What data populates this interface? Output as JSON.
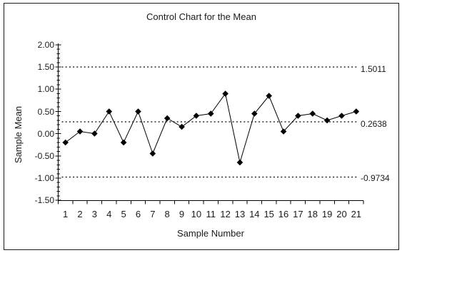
{
  "chart": {
    "title": "Control Chart for the Mean",
    "x_axis_label": "Sample Number",
    "y_axis_label": "Sample Mean",
    "line_labels": {
      "ucl": "1.5011",
      "center": "0.2638",
      "lcl": "-0.9734"
    }
  },
  "chart_data": {
    "type": "line",
    "title": "Control Chart for the Mean",
    "xlabel": "Sample Number",
    "ylabel": "Sample Mean",
    "x": [
      1,
      2,
      3,
      4,
      5,
      6,
      7,
      8,
      9,
      10,
      11,
      12,
      13,
      14,
      15,
      16,
      17,
      18,
      19,
      20,
      21
    ],
    "values": [
      -0.2,
      0.05,
      0.0,
      0.5,
      -0.2,
      0.5,
      -0.45,
      0.35,
      0.15,
      0.4,
      0.45,
      0.9,
      -0.65,
      0.45,
      0.85,
      0.05,
      0.4,
      0.45,
      0.3,
      0.4,
      0.5
    ],
    "upper_control_limit": 1.5011,
    "center_line": 0.2638,
    "lower_control_limit": -0.9734,
    "reference_line_labels": [
      "1.5011",
      "0.2638",
      "-0.9734"
    ],
    "reference_line_style": "dotted",
    "ylim": [
      -1.5,
      2.0
    ],
    "y_ticks": [
      2.0,
      1.5,
      1.0,
      0.5,
      0.0,
      -0.5,
      -1.0,
      -1.5
    ],
    "y_tick_labels": [
      "2.00",
      "1.50",
      "1.00",
      "0.50",
      "0.00",
      "-0.50",
      "-1.00",
      "-1.50"
    ],
    "y_minor_tick_step": 0.1,
    "marker": "diamond",
    "series_color": "#000000",
    "reference_line_color": "#000000",
    "background_color": "#ffffff",
    "grid": "off",
    "legend": "none"
  }
}
